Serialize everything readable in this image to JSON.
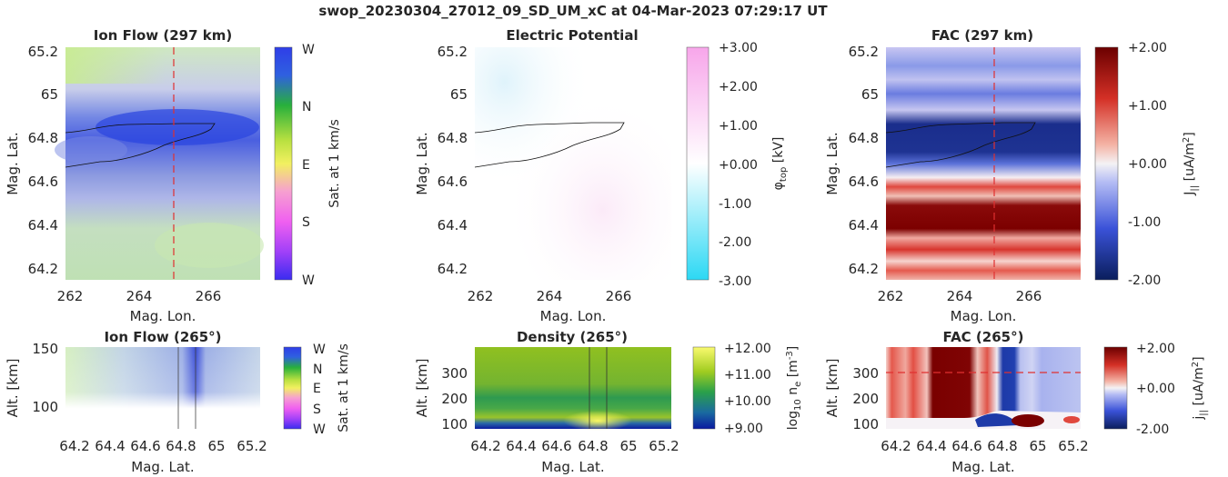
{
  "suptitle": "swop_20230304_27012_09_SD_UM_xC at 04-Mar-2023 07:29:17 UT",
  "chart_data": [
    {
      "type": "heatmap",
      "title": "Ion Flow (297 km)",
      "xlabel": "Mag. Lon.",
      "ylabel": "Mag. Lat.",
      "xlim": [
        261.8,
        267.5
      ],
      "ylim": [
        64.15,
        65.25
      ],
      "xticks": [
        "262",
        "264",
        "266"
      ],
      "yticks": [
        "64.2",
        "64.4",
        "64.6",
        "64.8",
        "65",
        "65.2"
      ],
      "colorbar": {
        "label": "Sat. at 1 km/s",
        "ticks": [
          "W",
          "N",
          "E",
          "S",
          "W"
        ]
      },
      "overlays": {
        "dashed_vertical_line_x": 265,
        "contour": "black outline"
      }
    },
    {
      "type": "heatmap",
      "title": "Electric Potential",
      "xlabel": "Mag. Lon.",
      "ylabel": "Mag. Lat.",
      "xlim": [
        261.8,
        267.5
      ],
      "ylim": [
        64.15,
        65.25
      ],
      "xticks": [
        "262",
        "264",
        "266"
      ],
      "yticks": [
        "64.2",
        "64.4",
        "64.6",
        "64.8",
        "65",
        "65.2"
      ],
      "colorbar": {
        "label": "φ_top [kV]",
        "range": [
          -3,
          3
        ],
        "ticks": [
          "+3.00",
          "+2.00",
          "+1.00",
          "+0.00",
          "-1.00",
          "-2.00",
          "-3.00"
        ]
      }
    },
    {
      "type": "heatmap",
      "title": "FAC (297 km)",
      "xlabel": "Mag. Lon.",
      "ylabel": "Mag. Lat.",
      "xlim": [
        261.8,
        267.5
      ],
      "ylim": [
        64.15,
        65.25
      ],
      "xticks": [
        "262",
        "264",
        "266"
      ],
      "yticks": [
        "64.2",
        "64.4",
        "64.6",
        "64.8",
        "65",
        "65.2"
      ],
      "colorbar": {
        "label": "J|| [uA/m²]",
        "range": [
          -2,
          2
        ],
        "ticks": [
          "+2.00",
          "+1.00",
          "+0.00",
          "-1.00",
          "-2.00"
        ]
      },
      "overlays": {
        "dashed_vertical_line_x": 265,
        "contour": "black outline"
      }
    },
    {
      "type": "heatmap",
      "title": "Ion Flow (265°)",
      "xlabel": "Mag. Lat.",
      "ylabel": "Alt. [km]",
      "xlim": [
        64.15,
        65.25
      ],
      "ylim": [
        80,
        150
      ],
      "xticks": [
        "64.2",
        "64.4",
        "64.6",
        "64.8",
        "65",
        "65.2"
      ],
      "yticks": [
        "100",
        "150"
      ],
      "colorbar": {
        "label": "Sat. at 1 km/s",
        "ticks": [
          "W",
          "N",
          "E",
          "S",
          "W"
        ]
      }
    },
    {
      "type": "heatmap",
      "title": "Density (265°)",
      "xlabel": "Mag. Lat.",
      "ylabel": "Alt. [km]",
      "xlim": [
        64.15,
        65.25
      ],
      "ylim": [
        80,
        400
      ],
      "xticks": [
        "64.2",
        "64.4",
        "64.6",
        "64.8",
        "65",
        "65.2"
      ],
      "yticks": [
        "100",
        "200",
        "300"
      ],
      "colorbar": {
        "label": "log10 ne [m-3]",
        "range": [
          9,
          12
        ],
        "ticks": [
          "+12.00",
          "+11.00",
          "+10.00",
          "+9.00"
        ]
      }
    },
    {
      "type": "heatmap",
      "title": "FAC (265°)",
      "xlabel": "Mag. Lat.",
      "ylabel": "Alt. [km]",
      "xlim": [
        64.15,
        65.25
      ],
      "ylim": [
        80,
        400
      ],
      "xticks": [
        "64.2",
        "64.4",
        "64.6",
        "64.8",
        "65",
        "65.2"
      ],
      "yticks": [
        "100",
        "200",
        "300"
      ],
      "colorbar": {
        "label": "j|| [uA/m²]",
        "range": [
          -2,
          2
        ],
        "ticks": [
          "+2.00",
          "+0.00",
          "-2.00"
        ]
      },
      "overlays": {
        "dashed_horizontal_line_y": 300
      }
    }
  ]
}
